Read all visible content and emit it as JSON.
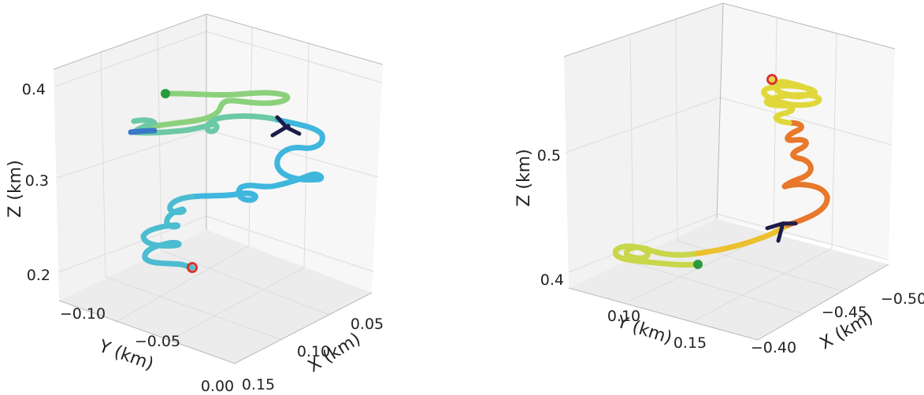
{
  "chart_data": [
    {
      "type": "line3d",
      "name": "left-trajectory",
      "xlabel": "X (km)",
      "ylabel": "Y (km)",
      "zlabel": "Z (km)",
      "x_ticks": [
        "0.00",
        "0.05",
        "0.10",
        "0.15"
      ],
      "y_ticks": [
        "−0.10",
        "−0.05"
      ],
      "z_ticks": [
        "0.2",
        "0.3",
        "0.4"
      ],
      "colormap": [
        "#3fb6dd",
        "#4cbcd0",
        "#6cc9a6",
        "#8bd17c",
        "#57b46f"
      ],
      "start_color": "#2a9b3f",
      "end_color": "#d9322b",
      "arrow_color": "#1c1c4a"
    },
    {
      "type": "line3d",
      "name": "right-trajectory",
      "xlabel": "X (km)",
      "ylabel": "Y (km)",
      "zlabel": "Z (km)",
      "x_ticks": [
        "−0.40",
        "−0.45",
        "−0.50"
      ],
      "y_ticks": [
        "0.10",
        "0.15"
      ],
      "z_ticks": [
        "0.4",
        "0.5"
      ],
      "colormap": [
        "#c8d64a",
        "#e0d83a",
        "#ecc02e",
        "#e8782a",
        "#d9522a"
      ],
      "start_color": "#2a9b3f",
      "end_color": "#d9322b",
      "arrow_color": "#1c1c4a"
    }
  ]
}
